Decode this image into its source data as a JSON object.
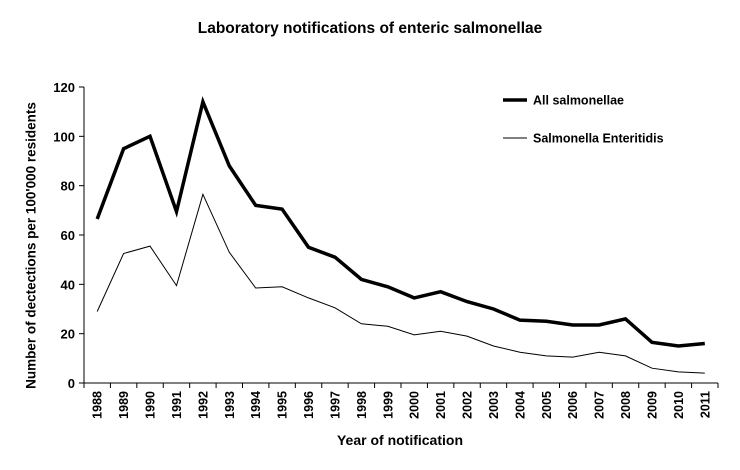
{
  "chart_data": {
    "type": "line",
    "title": "Laboratory notifications of enteric salmonellae",
    "xlabel": "Year of notification",
    "ylabel": "Number of dectections per 100'000 residents",
    "ylim": [
      0,
      120
    ],
    "yticks": [
      0,
      20,
      40,
      60,
      80,
      100,
      120
    ],
    "legend_position": "top-right",
    "categories": [
      "1988",
      "1989",
      "1990",
      "1991",
      "1992",
      "1993",
      "1994",
      "1995",
      "1996",
      "1997",
      "1998",
      "1999",
      "2000",
      "2001",
      "2002",
      "2003",
      "2004",
      "2005",
      "2006",
      "2007",
      "2008",
      "2009",
      "2010",
      "2011"
    ],
    "series": [
      {
        "name": "All salmonellae",
        "style": "thick",
        "color": "#000000",
        "values": [
          66.5,
          95,
          100,
          69.5,
          114,
          88,
          72,
          70.5,
          55,
          51,
          42,
          39,
          34.5,
          37,
          33,
          30,
          25.5,
          25,
          23.5,
          23.5,
          26,
          16.5,
          15,
          16
        ]
      },
      {
        "name": "Salmonella Enteritidis",
        "style": "thin",
        "color": "#000000",
        "values": [
          29,
          52.5,
          55.5,
          39.5,
          76.5,
          53,
          38.5,
          39,
          34.5,
          30.5,
          24,
          23,
          19.5,
          21,
          19,
          15,
          12.5,
          11,
          10.5,
          12.5,
          11,
          6,
          4.5,
          4
        ]
      }
    ]
  }
}
